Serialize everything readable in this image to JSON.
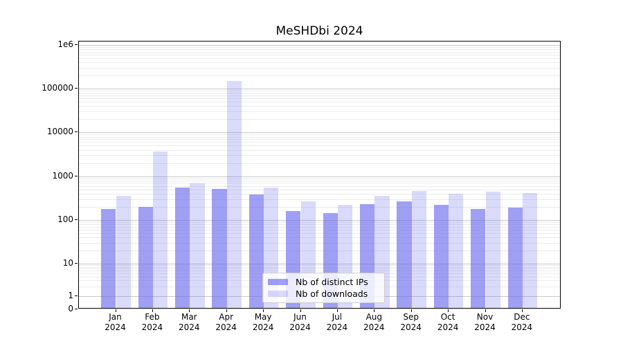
{
  "title": "MeSHDbi 2024",
  "chart_data": {
    "type": "bar",
    "title": "MeSHDbi 2024",
    "categories": [
      "Jan 2024",
      "Feb 2024",
      "Mar 2024",
      "Apr 2024",
      "May 2024",
      "Jun 2024",
      "Jul 2024",
      "Aug 2024",
      "Sep 2024",
      "Oct 2024",
      "Nov 2024",
      "Dec 2024"
    ],
    "series": [
      {
        "name": "Nb of distinct IPs",
        "color": "rgba(100,100,235,0.62)",
        "values": [
          165,
          185,
          520,
          480,
          360,
          150,
          132,
          212,
          245,
          205,
          165,
          178
        ]
      },
      {
        "name": "Nb of downloads",
        "color": "rgba(100,100,235,0.24)",
        "values": [
          330,
          3400,
          640,
          140000,
          505,
          250,
          203,
          330,
          430,
          365,
          405,
          385
        ]
      }
    ],
    "xlabel": "",
    "ylabel": "",
    "yscale": "symlog",
    "y_ticks": [
      0,
      1,
      10,
      100,
      1000,
      10000,
      100000,
      1000000
    ],
    "y_tick_labels": [
      "0",
      "1",
      "10",
      "100",
      "1000",
      "10000",
      "100000",
      "1e6"
    ],
    "ylim": [
      0,
      1220000
    ],
    "grid": "horizontal-major-and-minor",
    "legend_position": "lower center",
    "colors": {
      "major_grid": "#c9c9c9",
      "minor_grid": "#ebebeb",
      "axis": "#000000",
      "background": "#ffffff"
    }
  }
}
